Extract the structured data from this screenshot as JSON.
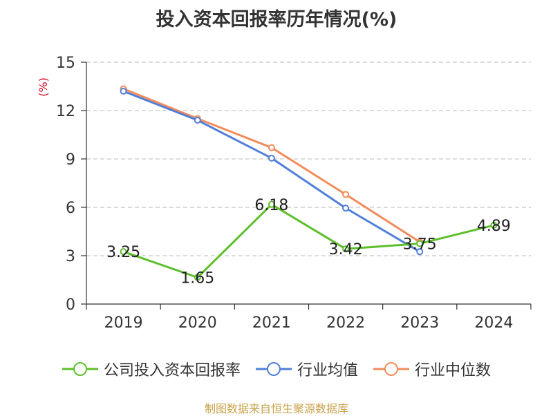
{
  "chart_data": {
    "type": "line",
    "title": "投入资本回报率历年情况(%)",
    "ylabel": "(%)",
    "xlabel": "",
    "categories": [
      "2019",
      "2020",
      "2021",
      "2022",
      "2023",
      "2024"
    ],
    "ylim": [
      0,
      15
    ],
    "yticks": [
      0,
      3,
      6,
      9,
      12,
      15
    ],
    "grid": true,
    "legend_position": "bottom",
    "series": [
      {
        "name": "公司投入资本回报率",
        "color": "#5cbf2a",
        "values": [
          3.25,
          1.65,
          6.18,
          3.42,
          3.75,
          4.89
        ],
        "labels": [
          "3.25",
          "1.65",
          "6.18",
          "3.42",
          "3.75",
          "4.89"
        ]
      },
      {
        "name": "行业均值",
        "color": "#4f7fd9",
        "values": [
          13.2,
          11.4,
          9.05,
          5.95,
          3.25,
          null
        ]
      },
      {
        "name": "行业中位数",
        "color": "#f28c5b",
        "values": [
          13.35,
          11.5,
          9.7,
          6.8,
          3.85,
          null
        ]
      }
    ]
  },
  "footer": {
    "source": "制图数据来自恒生聚源数据库"
  }
}
